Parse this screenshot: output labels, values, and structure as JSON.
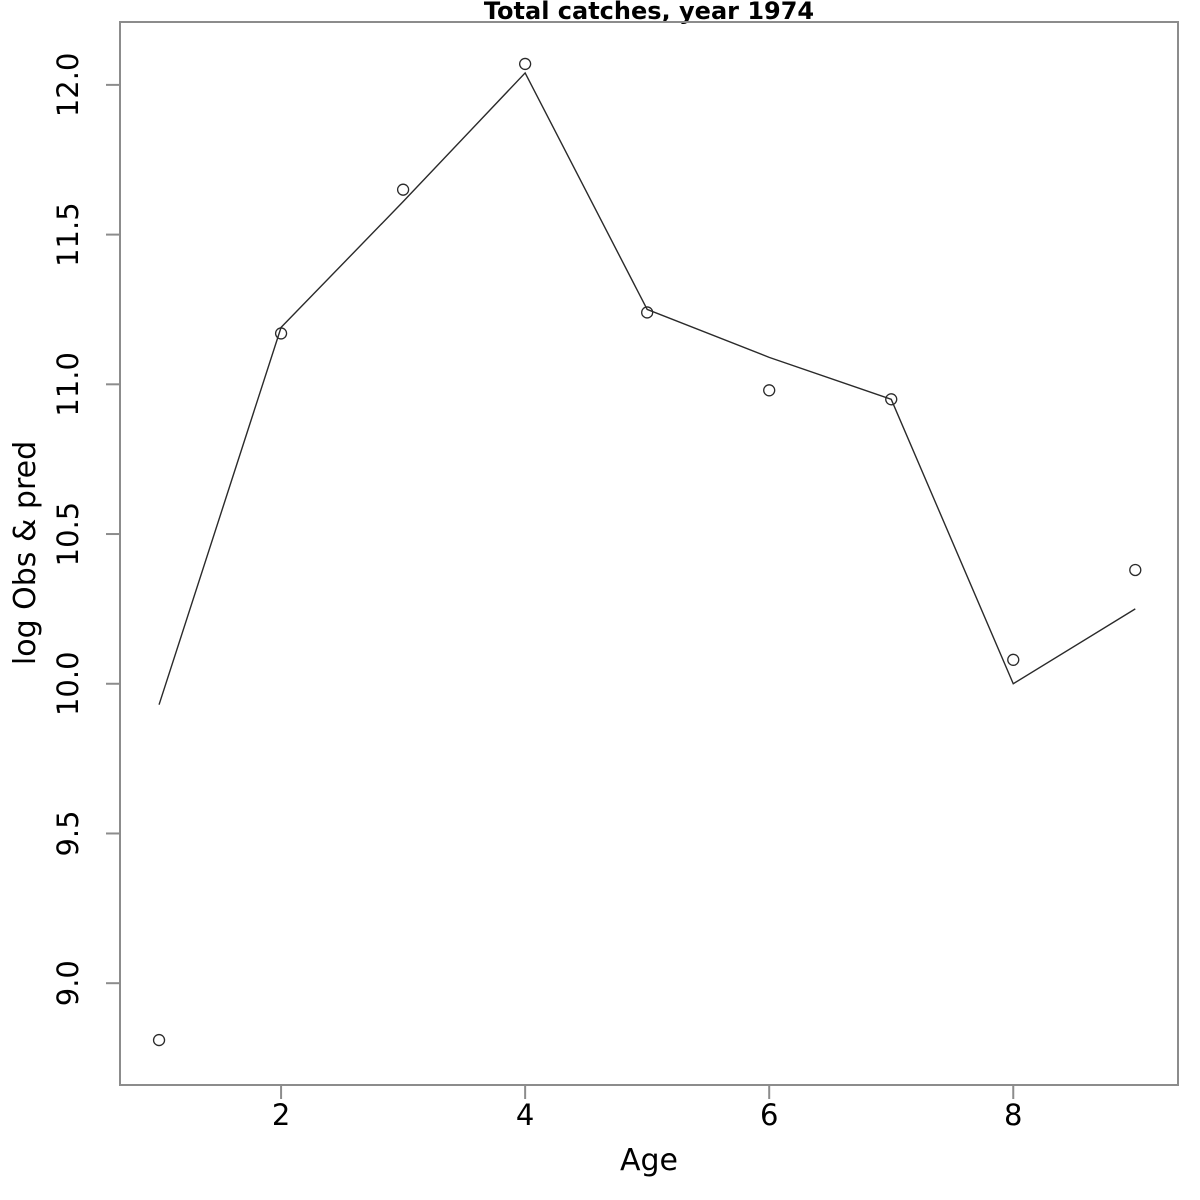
{
  "title": "Total catches, year 1974",
  "chart_data": {
    "type": "line",
    "title": "Total catches, year 1974",
    "xlabel": "Age",
    "ylabel": "log Obs & pred",
    "x": [
      1,
      2,
      3,
      4,
      5,
      6,
      7,
      8,
      9
    ],
    "series": [
      {
        "name": "observed",
        "style": "points",
        "marker": "open-circle",
        "values": [
          8.81,
          11.17,
          11.65,
          12.07,
          11.24,
          10.98,
          10.95,
          10.08,
          10.38
        ]
      },
      {
        "name": "predicted",
        "style": "line",
        "values": [
          9.93,
          11.19,
          11.61,
          12.04,
          11.25,
          11.09,
          10.95,
          10.0,
          10.25
        ]
      }
    ],
    "xlim": [
      0.68,
      9.35
    ],
    "ylim": [
      8.66,
      12.21
    ],
    "xticks": [
      2,
      4,
      6,
      8
    ],
    "xtick_labels": [
      "2",
      "4",
      "6",
      "8"
    ],
    "yticks": [
      9.0,
      9.5,
      10.0,
      10.5,
      11.0,
      11.5,
      12.0
    ],
    "ytick_labels": [
      "9.0",
      "9.5",
      "10.0",
      "10.5",
      "11.0",
      "11.5",
      "12.0"
    ],
    "grid": false,
    "legend": "none",
    "colors": {
      "line": "#2a2a2a",
      "marker": "#2a2a2a",
      "box": "#8c8c8c",
      "tick": "#8c8c8c",
      "text": "#000000",
      "background": "#ffffff"
    }
  }
}
